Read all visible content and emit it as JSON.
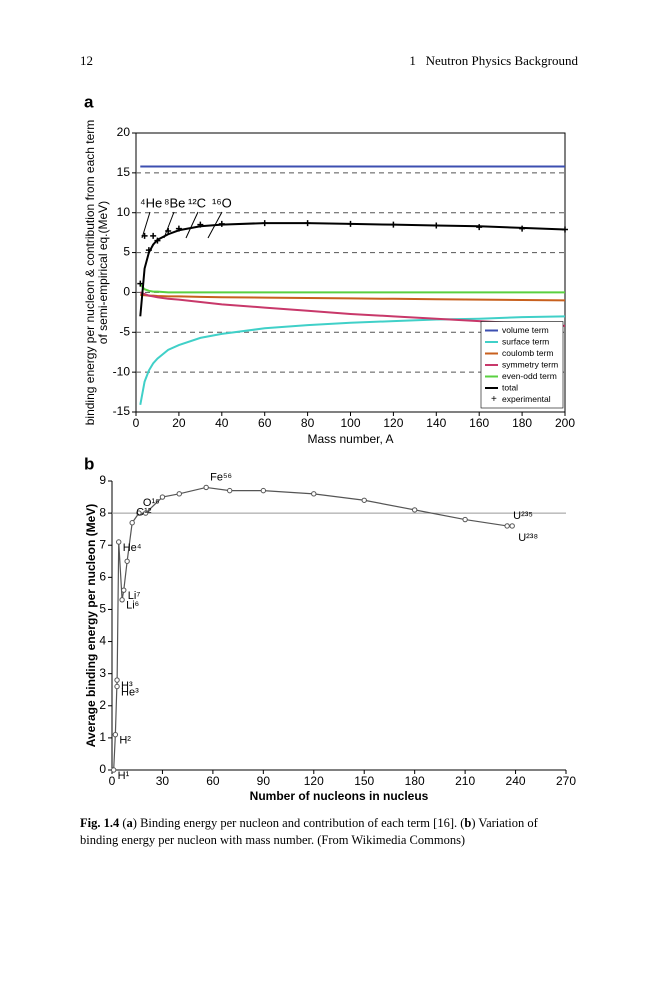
{
  "header": {
    "page_number": "12",
    "running_title": "1   Neutron Physics Background"
  },
  "chart_data": [
    {
      "type": "line",
      "panel": "a",
      "xlabel": "Mass number, A",
      "ylabel": [
        "binding energy per nucleon & contribution from each term",
        "of semi-empirical eq.(MeV)"
      ],
      "x": [
        2,
        4,
        6,
        8,
        10,
        15,
        20,
        30,
        40,
        60,
        80,
        100,
        120,
        140,
        160,
        180,
        200
      ],
      "series": [
        {
          "name": "volume term",
          "color": "#3c4fb0",
          "values": [
            15.8,
            15.8,
            15.8,
            15.8,
            15.8,
            15.8,
            15.8,
            15.8,
            15.8,
            15.8,
            15.8,
            15.8,
            15.8,
            15.8,
            15.8,
            15.8,
            15.8
          ]
        },
        {
          "name": "surface term",
          "color": "#40d0c8",
          "values": [
            -14.1,
            -11.2,
            -9.8,
            -8.9,
            -8.3,
            -7.2,
            -6.6,
            -5.7,
            -5.2,
            -4.5,
            -4.1,
            -3.8,
            -3.6,
            -3.4,
            -3.3,
            -3.1,
            -3.0
          ]
        },
        {
          "name": "coulomb term",
          "color": "#c8601e",
          "values": [
            -0.3,
            -0.35,
            -0.4,
            -0.4,
            -0.45,
            -0.5,
            -0.5,
            -0.55,
            -0.6,
            -0.65,
            -0.7,
            -0.75,
            -0.8,
            -0.85,
            -0.9,
            -0.95,
            -1.0
          ]
        },
        {
          "name": "symmetry term",
          "color": "#c8386a",
          "values": [
            0,
            -0.2,
            -0.4,
            -0.5,
            -0.6,
            -0.8,
            -0.9,
            -1.2,
            -1.5,
            -1.9,
            -2.3,
            -2.7,
            -3.0,
            -3.3,
            -3.6,
            -3.9,
            -4.2
          ]
        },
        {
          "name": "even-odd term",
          "color": "#5ad040",
          "values": [
            1.0,
            0.4,
            0.2,
            0.1,
            0.1,
            0,
            0,
            0,
            0,
            0,
            0,
            0,
            0,
            0,
            0,
            0,
            0
          ]
        },
        {
          "name": "total",
          "color": "#000000",
          "values": [
            -3,
            3,
            5,
            6,
            6.6,
            7.3,
            7.8,
            8.3,
            8.5,
            8.7,
            8.7,
            8.6,
            8.5,
            8.4,
            8.3,
            8.1,
            7.9
          ]
        },
        {
          "name": "experimental",
          "color": "#000000",
          "marker": "+",
          "values": [
            1.1,
            7.1,
            5.3,
            7.1,
            6.5,
            7.7,
            8.0,
            8.5,
            8.6,
            8.7,
            8.7,
            8.6,
            8.5,
            8.4,
            8.2,
            8.0,
            7.9
          ]
        }
      ],
      "annotations": [
        "⁴He",
        "⁸Be",
        "¹²C",
        "¹⁶O"
      ],
      "xlim": [
        0,
        200
      ],
      "xticks": [
        0,
        20,
        40,
        60,
        80,
        100,
        120,
        140,
        160,
        180,
        200
      ],
      "ylim": [
        -15,
        20
      ],
      "yticks": [
        -15,
        -10,
        -5,
        0,
        5,
        10,
        15,
        20
      ],
      "grid": true,
      "legend": "lower right"
    },
    {
      "type": "line",
      "panel": "b",
      "xlabel": "Number of nucleons in nucleus",
      "ylabel": [
        "Average binding energy per nucleon (MeV)"
      ],
      "x": [
        1,
        2,
        3,
        3,
        4,
        6,
        7,
        9,
        12,
        16,
        20,
        30,
        40,
        56,
        70,
        90,
        120,
        150,
        180,
        210,
        235,
        238
      ],
      "series": [
        {
          "name": null,
          "color": "#555555",
          "marker": "o",
          "values": [
            0,
            1.1,
            2.8,
            2.6,
            7.1,
            5.3,
            5.6,
            6.5,
            7.7,
            8.0,
            8.0,
            8.5,
            8.6,
            8.8,
            8.7,
            8.7,
            8.6,
            8.4,
            8.1,
            7.8,
            7.6,
            7.6
          ]
        }
      ],
      "point_labels": [
        "H¹",
        "H²",
        "H³",
        "He³",
        "He⁴",
        "Li⁶",
        "Li⁷",
        null,
        "C¹²",
        "O¹⁶",
        null,
        null,
        null,
        "Fe⁵⁶",
        null,
        null,
        null,
        null,
        null,
        null,
        "U²³⁵",
        "U²³⁸"
      ],
      "hline": 8,
      "xlim": [
        0,
        270
      ],
      "xticks": [
        0,
        30,
        60,
        90,
        120,
        150,
        180,
        210,
        240,
        270
      ],
      "ylim": [
        0,
        9
      ],
      "yticks": [
        0,
        1,
        2,
        3,
        4,
        5,
        6,
        7,
        8,
        9
      ],
      "grid": false
    }
  ],
  "caption": {
    "label": "Fig. 1.4",
    "parts": [
      "(",
      "a",
      ") Binding energy per nucleon and contribution of each term [16]. (",
      "b",
      ") Variation of binding energy per nucleon with mass number. (From Wikimedia Commons)"
    ]
  }
}
